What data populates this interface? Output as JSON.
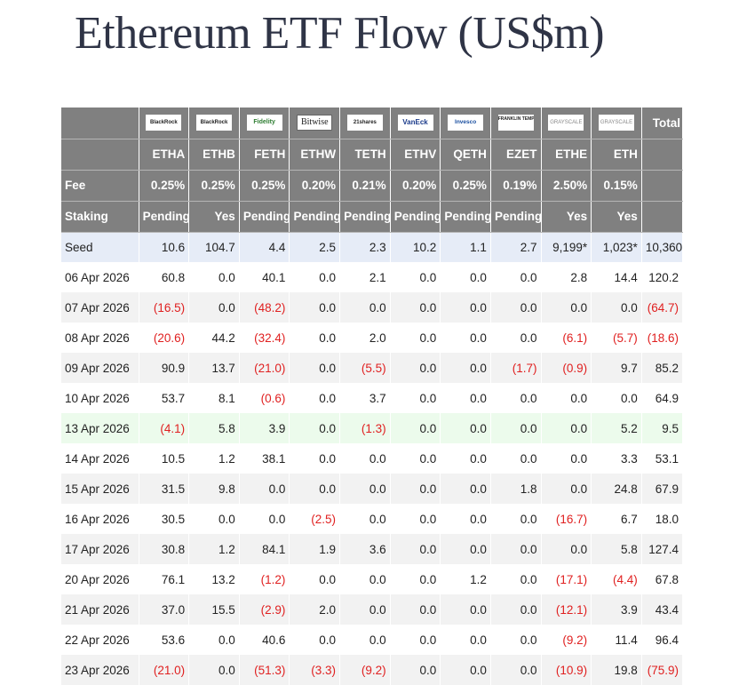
{
  "title": "Ethereum ETF Flow (US$m)",
  "colors": {
    "header_bg": "#808080",
    "negative": "#e02020",
    "seed_row": "#e6ecf7",
    "highlight_row": "#ecfbec",
    "alt_row": "#f2f2f2"
  },
  "issuer_logos": [
    {
      "icon": "blackrock-logo",
      "text": "BlackRock"
    },
    {
      "icon": "blackrock-logo",
      "text": "BlackRock"
    },
    {
      "icon": "fidelity-logo",
      "text": "Fidelity"
    },
    {
      "icon": "bitwise-logo",
      "text": "Bitwise"
    },
    {
      "icon": "21shares-logo",
      "text": "21shares"
    },
    {
      "icon": "vaneck-logo",
      "text": "VanEck"
    },
    {
      "icon": "invesco-logo",
      "text": "Invesco"
    },
    {
      "icon": "franklin-templeton-logo",
      "text": "FRANKLIN TEMPLETON"
    },
    {
      "icon": "grayscale-logo",
      "text": "GRAYSCALE"
    },
    {
      "icon": "grayscale-logo",
      "text": "GRAYSCALE"
    }
  ],
  "total_label": "Total",
  "tickers": [
    "ETHA",
    "ETHB",
    "FETH",
    "ETHW",
    "TETH",
    "ETHV",
    "QETH",
    "EZET",
    "ETHE",
    "ETH"
  ],
  "fee_label": "Fee",
  "fees": [
    "0.25%",
    "0.25%",
    "0.25%",
    "0.20%",
    "0.21%",
    "0.20%",
    "0.25%",
    "0.19%",
    "2.50%",
    "0.15%"
  ],
  "staking_label": "Staking",
  "staking": [
    "Pending",
    "Yes",
    "Pending",
    "Pending",
    "Pending",
    "Pending",
    "Pending",
    "Pending",
    "Yes",
    "Yes"
  ],
  "rows": [
    {
      "label": "Seed",
      "cells": [
        "10.6",
        "104.7",
        "4.4",
        "2.5",
        "2.3",
        "10.2",
        "1.1",
        "2.7",
        "9,199*",
        "1,023*",
        "10,360"
      ]
    },
    {
      "label": "06 Apr 2026",
      "cells": [
        "60.8",
        "0.0",
        "40.1",
        "0.0",
        "2.1",
        "0.0",
        "0.0",
        "0.0",
        "2.8",
        "14.4",
        "120.2"
      ]
    },
    {
      "label": "07 Apr 2026",
      "cells": [
        "(16.5)",
        "0.0",
        "(48.2)",
        "0.0",
        "0.0",
        "0.0",
        "0.0",
        "0.0",
        "0.0",
        "0.0",
        "(64.7)"
      ]
    },
    {
      "label": "08 Apr 2026",
      "cells": [
        "(20.6)",
        "44.2",
        "(32.4)",
        "0.0",
        "2.0",
        "0.0",
        "0.0",
        "0.0",
        "(6.1)",
        "(5.7)",
        "(18.6)"
      ]
    },
    {
      "label": "09 Apr 2026",
      "cells": [
        "90.9",
        "13.7",
        "(21.0)",
        "0.0",
        "(5.5)",
        "0.0",
        "0.0",
        "(1.7)",
        "(0.9)",
        "9.7",
        "85.2"
      ]
    },
    {
      "label": "10 Apr 2026",
      "cells": [
        "53.7",
        "8.1",
        "(0.6)",
        "0.0",
        "3.7",
        "0.0",
        "0.0",
        "0.0",
        "0.0",
        "0.0",
        "64.9"
      ]
    },
    {
      "label": "13 Apr 2026",
      "cells": [
        "(4.1)",
        "5.8",
        "3.9",
        "0.0",
        "(1.3)",
        "0.0",
        "0.0",
        "0.0",
        "0.0",
        "5.2",
        "9.5"
      ]
    },
    {
      "label": "14 Apr 2026",
      "cells": [
        "10.5",
        "1.2",
        "38.1",
        "0.0",
        "0.0",
        "0.0",
        "0.0",
        "0.0",
        "0.0",
        "3.3",
        "53.1"
      ]
    },
    {
      "label": "15 Apr 2026",
      "cells": [
        "31.5",
        "9.8",
        "0.0",
        "0.0",
        "0.0",
        "0.0",
        "0.0",
        "1.8",
        "0.0",
        "24.8",
        "67.9"
      ]
    },
    {
      "label": "16 Apr 2026",
      "cells": [
        "30.5",
        "0.0",
        "0.0",
        "(2.5)",
        "0.0",
        "0.0",
        "0.0",
        "0.0",
        "(16.7)",
        "6.7",
        "18.0"
      ]
    },
    {
      "label": "17 Apr 2026",
      "cells": [
        "30.8",
        "1.2",
        "84.1",
        "1.9",
        "3.6",
        "0.0",
        "0.0",
        "0.0",
        "0.0",
        "5.8",
        "127.4"
      ]
    },
    {
      "label": "20 Apr 2026",
      "cells": [
        "76.1",
        "13.2",
        "(1.2)",
        "0.0",
        "0.0",
        "0.0",
        "1.2",
        "0.0",
        "(17.1)",
        "(4.4)",
        "67.8"
      ]
    },
    {
      "label": "21 Apr 2026",
      "cells": [
        "37.0",
        "15.5",
        "(2.9)",
        "2.0",
        "0.0",
        "0.0",
        "0.0",
        "0.0",
        "(12.1)",
        "3.9",
        "43.4"
      ]
    },
    {
      "label": "22 Apr 2026",
      "cells": [
        "53.6",
        "0.0",
        "40.6",
        "0.0",
        "0.0",
        "0.0",
        "0.0",
        "0.0",
        "(9.2)",
        "11.4",
        "96.4"
      ]
    },
    {
      "label": "23 Apr 2026",
      "cells": [
        "(21.0)",
        "0.0",
        "(51.3)",
        "(3.3)",
        "(9.2)",
        "0.0",
        "0.0",
        "0.0",
        "(10.9)",
        "19.8",
        "(75.9)"
      ]
    }
  ]
}
